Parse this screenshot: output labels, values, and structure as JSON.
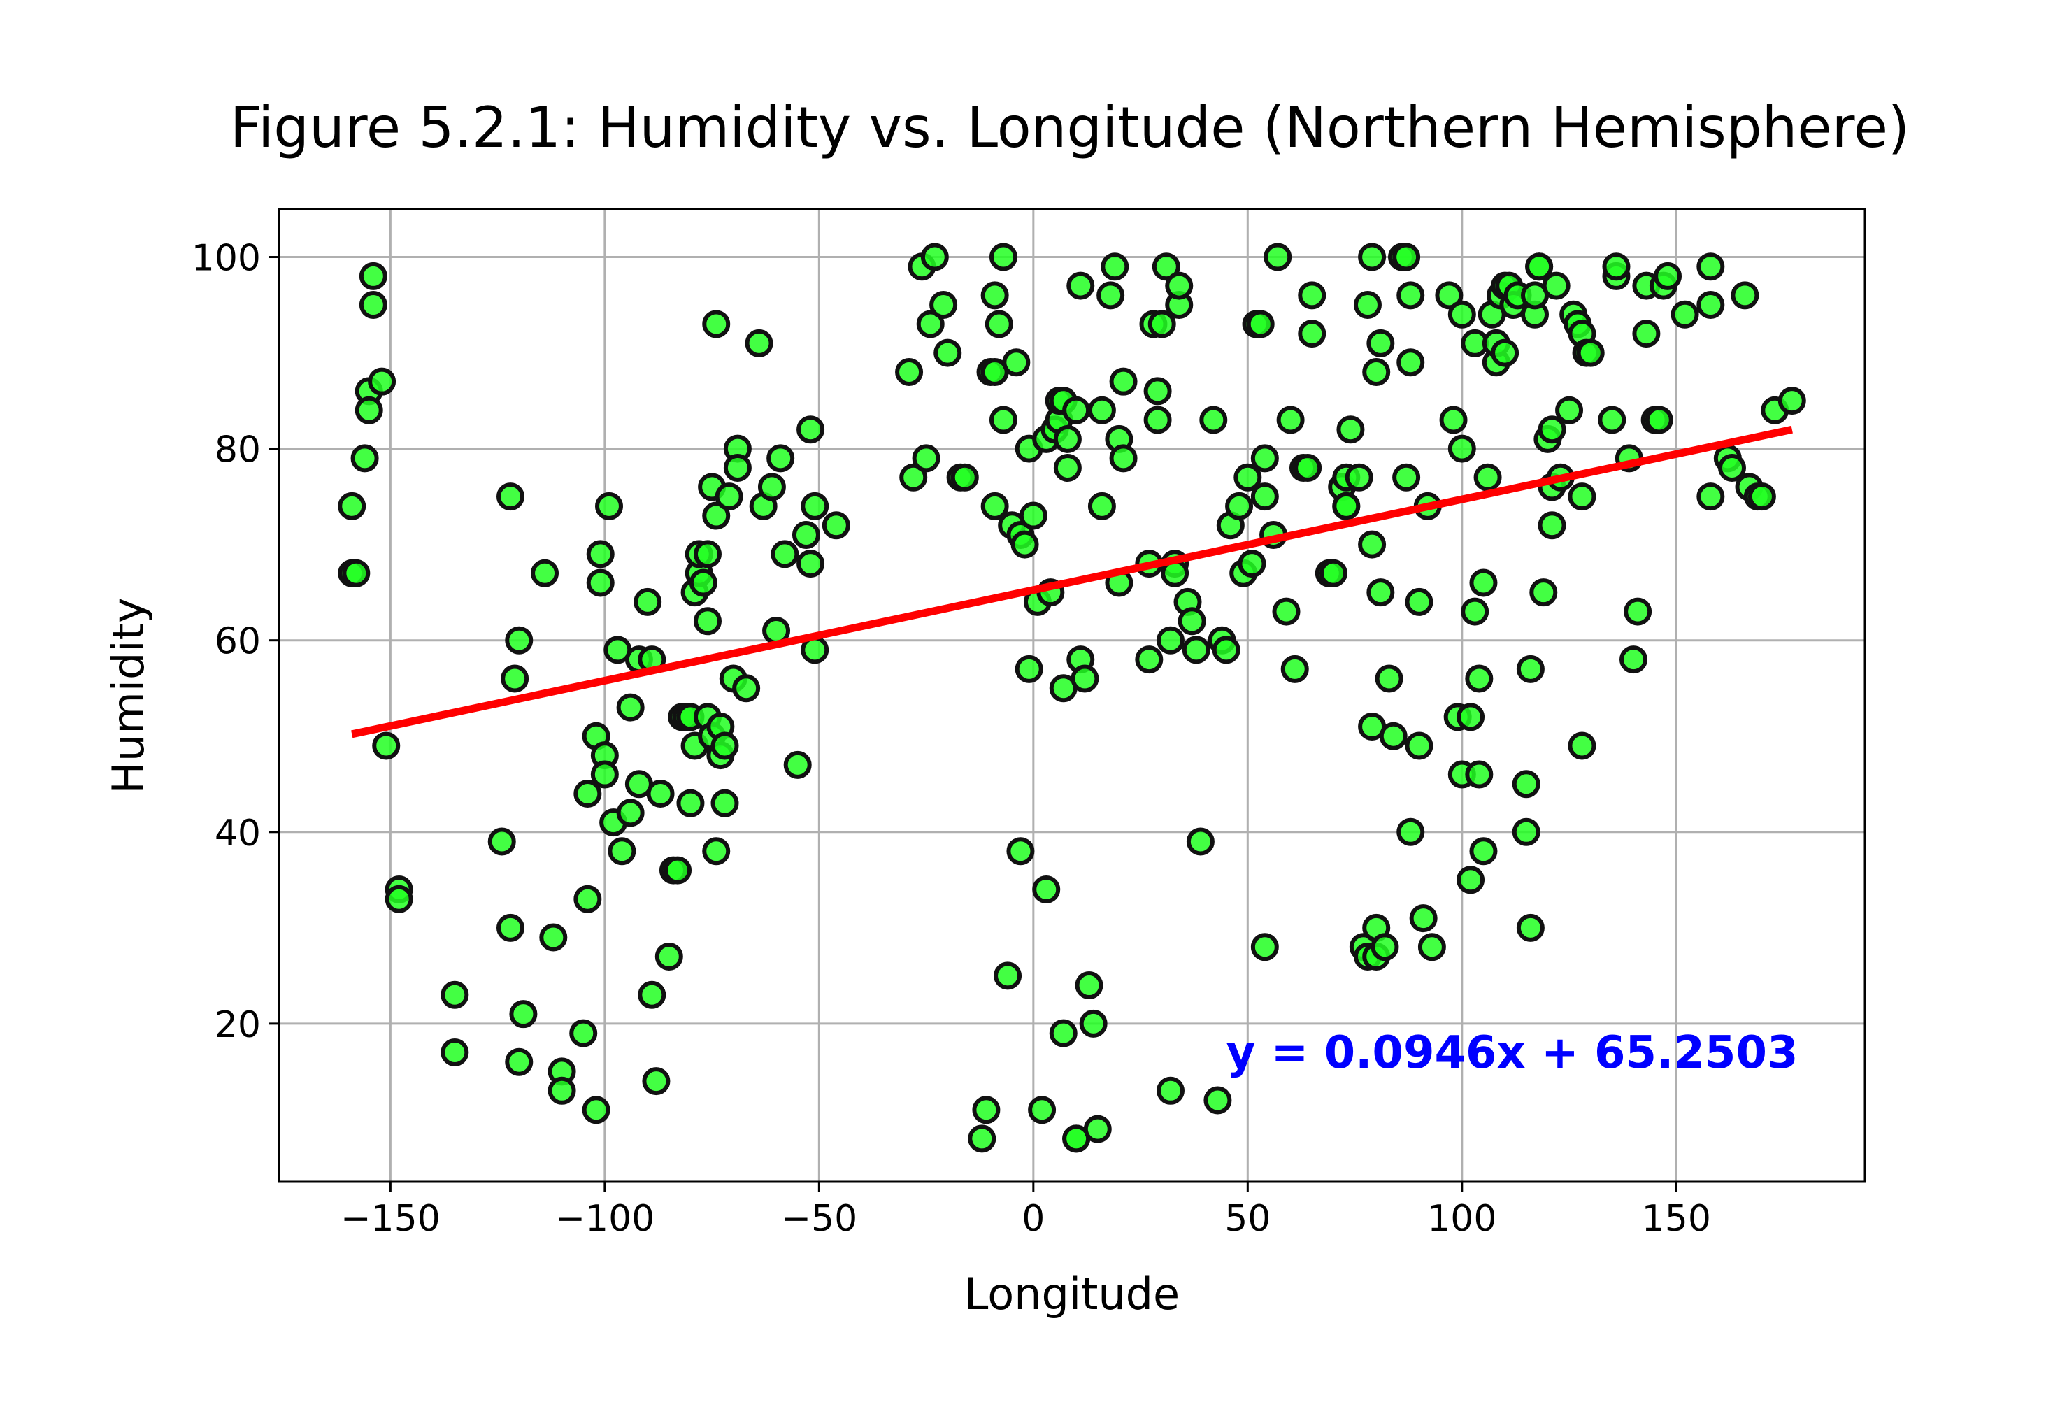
{
  "chart_data": {
    "type": "scatter",
    "title": "Figure 5.2.1: Humidity vs. Longitude (Northern Hemisphere)",
    "xlabel": "Longitude",
    "ylabel": "Humidity",
    "xlim": [
      -176,
      194
    ],
    "ylim": [
      3.5,
      105
    ],
    "xticks": [
      -150,
      -100,
      -50,
      0,
      50,
      100,
      150
    ],
    "xtick_labels": [
      "−150",
      "−100",
      "−50",
      "0",
      "50",
      "100",
      "150"
    ],
    "yticks": [
      20,
      40,
      60,
      80,
      100
    ],
    "ytick_labels": [
      "20",
      "40",
      "60",
      "80",
      "100"
    ],
    "grid": true,
    "marker_color": "#22ff22",
    "marker_edge_color": "#111111",
    "line_color": "#ff0000",
    "annotation_color": "#0000ff",
    "regression": {
      "slope": 0.0946,
      "intercept": 65.2503,
      "x_range": [
        -159,
        177
      ],
      "label": "y = 0.0946x + 65.2503",
      "label_pos": [
        45,
        17
      ]
    },
    "points": [
      [
        -159,
        74
      ],
      [
        -159,
        67
      ],
      [
        -158,
        67
      ],
      [
        -156,
        79
      ],
      [
        -155,
        86
      ],
      [
        -155,
        84
      ],
      [
        -154,
        98
      ],
      [
        -154,
        95
      ],
      [
        -152,
        87
      ],
      [
        -151,
        49
      ],
      [
        -148,
        34
      ],
      [
        -148,
        33
      ],
      [
        -135,
        23
      ],
      [
        -135,
        17
      ],
      [
        -124,
        39
      ],
      [
        -122,
        75
      ],
      [
        -122,
        30
      ],
      [
        -121,
        56
      ],
      [
        -120,
        60
      ],
      [
        -120,
        16
      ],
      [
        -119,
        21
      ],
      [
        -114,
        67
      ],
      [
        -112,
        29
      ],
      [
        -110,
        15
      ],
      [
        -110,
        13
      ],
      [
        -105,
        19
      ],
      [
        -104,
        33
      ],
      [
        -104,
        44
      ],
      [
        -102,
        11
      ],
      [
        -102,
        50
      ],
      [
        -101,
        69
      ],
      [
        -101,
        66
      ],
      [
        -100,
        48
      ],
      [
        -100,
        46
      ],
      [
        -99,
        74
      ],
      [
        -98,
        41
      ],
      [
        -97,
        59
      ],
      [
        -96,
        38
      ],
      [
        -94,
        53
      ],
      [
        -94,
        42
      ],
      [
        -92,
        58
      ],
      [
        -92,
        45
      ],
      [
        -90,
        64
      ],
      [
        -89,
        58
      ],
      [
        -89,
        23
      ],
      [
        -88,
        14
      ],
      [
        -87,
        44
      ],
      [
        -85,
        27
      ],
      [
        -84,
        36
      ],
      [
        -83,
        36
      ],
      [
        -82,
        52
      ],
      [
        -81,
        52
      ],
      [
        -80,
        52
      ],
      [
        -80,
        43
      ],
      [
        -79,
        49
      ],
      [
        -79,
        65
      ],
      [
        -78,
        67
      ],
      [
        -78,
        69
      ],
      [
        -77,
        66
      ],
      [
        -76,
        69
      ],
      [
        -76,
        52
      ],
      [
        -76,
        62
      ],
      [
        -75,
        76
      ],
      [
        -75,
        50
      ],
      [
        -74,
        73
      ],
      [
        -74,
        93
      ],
      [
        -74,
        38
      ],
      [
        -73,
        51
      ],
      [
        -73,
        48
      ],
      [
        -72,
        49
      ],
      [
        -72,
        43
      ],
      [
        -71,
        75
      ],
      [
        -70,
        56
      ],
      [
        -69,
        80
      ],
      [
        -69,
        78
      ],
      [
        -67,
        55
      ],
      [
        -64,
        91
      ],
      [
        -63,
        74
      ],
      [
        -61,
        76
      ],
      [
        -60,
        61
      ],
      [
        -59,
        79
      ],
      [
        -58,
        69
      ],
      [
        -55,
        47
      ],
      [
        -53,
        71
      ],
      [
        -52,
        82
      ],
      [
        -52,
        68
      ],
      [
        -51,
        74
      ],
      [
        -51,
        59
      ],
      [
        -46,
        72
      ],
      [
        -29,
        88
      ],
      [
        -28,
        77
      ],
      [
        -26,
        99
      ],
      [
        -25,
        79
      ],
      [
        -24,
        93
      ],
      [
        -23,
        100
      ],
      [
        -21,
        95
      ],
      [
        -20,
        90
      ],
      [
        -17,
        77
      ],
      [
        -16,
        77
      ],
      [
        -12,
        8
      ],
      [
        -11,
        11
      ],
      [
        -10,
        88
      ],
      [
        -9,
        88
      ],
      [
        -9,
        74
      ],
      [
        -9,
        96
      ],
      [
        -8,
        93
      ],
      [
        -7,
        100
      ],
      [
        -7,
        83
      ],
      [
        -6,
        25
      ],
      [
        -5,
        72
      ],
      [
        -4,
        89
      ],
      [
        -3,
        38
      ],
      [
        -3,
        71
      ],
      [
        -2,
        70
      ],
      [
        -1,
        80
      ],
      [
        -1,
        57
      ],
      [
        0,
        73
      ],
      [
        1,
        64
      ],
      [
        2,
        11
      ],
      [
        3,
        34
      ],
      [
        3,
        81
      ],
      [
        4,
        65
      ],
      [
        5,
        82
      ],
      [
        6,
        83
      ],
      [
        6,
        85
      ],
      [
        7,
        55
      ],
      [
        7,
        19
      ],
      [
        7,
        85
      ],
      [
        8,
        81
      ],
      [
        8,
        78
      ],
      [
        10,
        84
      ],
      [
        10,
        8
      ],
      [
        10,
        8
      ],
      [
        11,
        58
      ],
      [
        11,
        97
      ],
      [
        12,
        56
      ],
      [
        13,
        24
      ],
      [
        14,
        20
      ],
      [
        15,
        9
      ],
      [
        16,
        74
      ],
      [
        16,
        84
      ],
      [
        18,
        96
      ],
      [
        19,
        99
      ],
      [
        20,
        66
      ],
      [
        20,
        81
      ],
      [
        21,
        79
      ],
      [
        21,
        87
      ],
      [
        27,
        68
      ],
      [
        27,
        58
      ],
      [
        28,
        93
      ],
      [
        29,
        86
      ],
      [
        29,
        83
      ],
      [
        30,
        93
      ],
      [
        31,
        99
      ],
      [
        32,
        60
      ],
      [
        32,
        13
      ],
      [
        33,
        68
      ],
      [
        33,
        67
      ],
      [
        34,
        95
      ],
      [
        34,
        97
      ],
      [
        36,
        64
      ],
      [
        37,
        62
      ],
      [
        38,
        59
      ],
      [
        39,
        39
      ],
      [
        42,
        83
      ],
      [
        43,
        12
      ],
      [
        44,
        60
      ],
      [
        45,
        59
      ],
      [
        46,
        72
      ],
      [
        48,
        74
      ],
      [
        49,
        67
      ],
      [
        50,
        77
      ],
      [
        51,
        68
      ],
      [
        52,
        93
      ],
      [
        53,
        93
      ],
      [
        54,
        75
      ],
      [
        54,
        79
      ],
      [
        54,
        28
      ],
      [
        56,
        71
      ],
      [
        57,
        100
      ],
      [
        59,
        63
      ],
      [
        60,
        83
      ],
      [
        61,
        57
      ],
      [
        63,
        78
      ],
      [
        64,
        78
      ],
      [
        65,
        92
      ],
      [
        65,
        96
      ],
      [
        69,
        67
      ],
      [
        70,
        67
      ],
      [
        72,
        76
      ],
      [
        73,
        74
      ],
      [
        73,
        74
      ],
      [
        73,
        77
      ],
      [
        74,
        82
      ],
      [
        76,
        77
      ],
      [
        77,
        28
      ],
      [
        78,
        95
      ],
      [
        78,
        27
      ],
      [
        79,
        100
      ],
      [
        79,
        70
      ],
      [
        79,
        51
      ],
      [
        80,
        88
      ],
      [
        80,
        30
      ],
      [
        80,
        27
      ],
      [
        81,
        91
      ],
      [
        81,
        65
      ],
      [
        82,
        28
      ],
      [
        83,
        56
      ],
      [
        84,
        50
      ],
      [
        86,
        100
      ],
      [
        87,
        100
      ],
      [
        87,
        77
      ],
      [
        88,
        40
      ],
      [
        88,
        96
      ],
      [
        88,
        89
      ],
      [
        90,
        64
      ],
      [
        90,
        49
      ],
      [
        91,
        31
      ],
      [
        92,
        74
      ],
      [
        93,
        28
      ],
      [
        97,
        96
      ],
      [
        98,
        83
      ],
      [
        99,
        52
      ],
      [
        100,
        46
      ],
      [
        100,
        94
      ],
      [
        100,
        80
      ],
      [
        102,
        52
      ],
      [
        102,
        35
      ],
      [
        103,
        91
      ],
      [
        103,
        63
      ],
      [
        104,
        46
      ],
      [
        104,
        56
      ],
      [
        105,
        38
      ],
      [
        105,
        66
      ],
      [
        106,
        77
      ],
      [
        107,
        94
      ],
      [
        108,
        89
      ],
      [
        108,
        91
      ],
      [
        109,
        96
      ],
      [
        110,
        97
      ],
      [
        110,
        90
      ],
      [
        111,
        97
      ],
      [
        112,
        95
      ],
      [
        113,
        96
      ],
      [
        115,
        45
      ],
      [
        115,
        40
      ],
      [
        116,
        30
      ],
      [
        116,
        57
      ],
      [
        117,
        94
      ],
      [
        117,
        96
      ],
      [
        118,
        99
      ],
      [
        118,
        99
      ],
      [
        119,
        65
      ],
      [
        120,
        81
      ],
      [
        121,
        72
      ],
      [
        121,
        82
      ],
      [
        121,
        76
      ],
      [
        122,
        97
      ],
      [
        123,
        77
      ],
      [
        125,
        84
      ],
      [
        126,
        94
      ],
      [
        127,
        93
      ],
      [
        128,
        75
      ],
      [
        128,
        92
      ],
      [
        128,
        49
      ],
      [
        129,
        90
      ],
      [
        130,
        90
      ],
      [
        135,
        83
      ],
      [
        136,
        98
      ],
      [
        136,
        99
      ],
      [
        139,
        79
      ],
      [
        140,
        58
      ],
      [
        141,
        63
      ],
      [
        143,
        92
      ],
      [
        143,
        97
      ],
      [
        145,
        83
      ],
      [
        146,
        83
      ],
      [
        147,
        97
      ],
      [
        148,
        98
      ],
      [
        152,
        94
      ],
      [
        158,
        99
      ],
      [
        158,
        95
      ],
      [
        158,
        75
      ],
      [
        162,
        79
      ],
      [
        163,
        78
      ],
      [
        166,
        96
      ],
      [
        167,
        76
      ],
      [
        169,
        75
      ],
      [
        170,
        75
      ],
      [
        173,
        84
      ],
      [
        177,
        85
      ]
    ]
  }
}
